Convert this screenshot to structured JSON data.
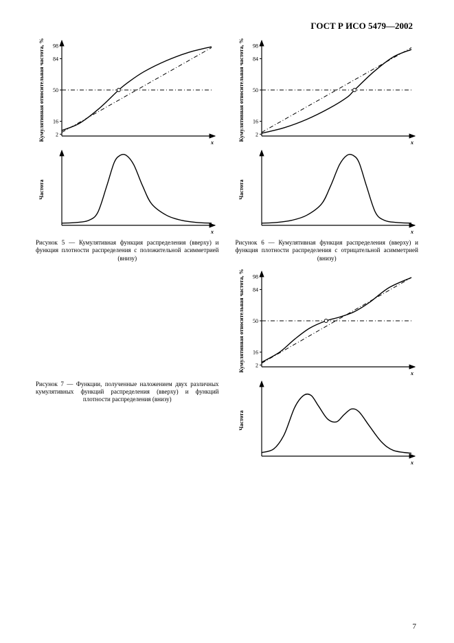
{
  "header": {
    "title": "ГОСТ Р ИСО 5479—2002"
  },
  "page_number": "7",
  "cdf_axis": {
    "ylabel": "Кумулятивная относительная частота, %",
    "xlabel": "x",
    "ticks": [
      "2",
      "16",
      "50",
      "84",
      "98"
    ],
    "tick_values": [
      2,
      16,
      50,
      84,
      98
    ],
    "ylim": [
      0,
      100
    ],
    "font_size": 8
  },
  "pdf_axis": {
    "ylabel": "Частота",
    "xlabel": "x",
    "font_size": 8
  },
  "style": {
    "stroke": "#000000",
    "line_width": 1.4,
    "dash_width": 1.0,
    "arrow": [
      [
        0,
        0
      ],
      [
        -7,
        -3
      ],
      [
        -7,
        3
      ]
    ],
    "dash_pattern": "6 3 1 3"
  },
  "figure5": {
    "cdf_curve": [
      [
        0,
        6
      ],
      [
        12,
        14
      ],
      [
        25,
        30
      ],
      [
        38,
        50
      ],
      [
        44,
        58
      ],
      [
        55,
        70
      ],
      [
        70,
        82
      ],
      [
        85,
        91
      ],
      [
        100,
        97
      ]
    ],
    "cdf_line": [
      [
        0,
        4
      ],
      [
        100,
        96
      ]
    ],
    "pdf_curve": [
      [
        0,
        3
      ],
      [
        10,
        4
      ],
      [
        18,
        7
      ],
      [
        24,
        18
      ],
      [
        30,
        55
      ],
      [
        35,
        88
      ],
      [
        39,
        98
      ],
      [
        43,
        98
      ],
      [
        48,
        85
      ],
      [
        54,
        55
      ],
      [
        60,
        30
      ],
      [
        70,
        14
      ],
      [
        80,
        7
      ],
      [
        90,
        4
      ],
      [
        100,
        3
      ]
    ],
    "caption": "Рисунок 5 — Кумулятивная функция распределения (вверху) и функция плотности распределения с положительной асимметрией (внизу)"
  },
  "figure6": {
    "cdf_curve": [
      [
        0,
        3
      ],
      [
        15,
        9
      ],
      [
        30,
        18
      ],
      [
        45,
        30
      ],
      [
        57,
        42
      ],
      [
        62,
        50
      ],
      [
        75,
        70
      ],
      [
        88,
        86
      ],
      [
        100,
        94
      ]
    ],
    "cdf_line": [
      [
        0,
        4
      ],
      [
        100,
        96
      ]
    ],
    "pdf_curve": [
      [
        0,
        3
      ],
      [
        10,
        4
      ],
      [
        20,
        7
      ],
      [
        30,
        14
      ],
      [
        40,
        30
      ],
      [
        46,
        55
      ],
      [
        52,
        85
      ],
      [
        57,
        98
      ],
      [
        61,
        98
      ],
      [
        65,
        88
      ],
      [
        70,
        55
      ],
      [
        76,
        18
      ],
      [
        82,
        7
      ],
      [
        90,
        4
      ],
      [
        100,
        3
      ]
    ],
    "caption": "Рисунок 6 — Кумулятивная функция распределения (вверху) и функция плотности распределения с отрицательной асимметрией (внизу)"
  },
  "figure7": {
    "cdf_curve": [
      [
        0,
        5
      ],
      [
        12,
        16
      ],
      [
        22,
        30
      ],
      [
        32,
        42
      ],
      [
        43,
        50
      ],
      [
        52,
        54
      ],
      [
        62,
        60
      ],
      [
        72,
        70
      ],
      [
        85,
        86
      ],
      [
        100,
        97
      ]
    ],
    "cdf_line": [
      [
        0,
        4
      ],
      [
        100,
        97
      ]
    ],
    "pdf_curve": [
      [
        0,
        5
      ],
      [
        8,
        10
      ],
      [
        15,
        30
      ],
      [
        22,
        68
      ],
      [
        28,
        85
      ],
      [
        33,
        85
      ],
      [
        38,
        70
      ],
      [
        44,
        52
      ],
      [
        50,
        48
      ],
      [
        55,
        58
      ],
      [
        60,
        66
      ],
      [
        65,
        62
      ],
      [
        72,
        42
      ],
      [
        80,
        20
      ],
      [
        88,
        8
      ],
      [
        100,
        4
      ]
    ],
    "caption": "Рисунок 7 — Функции, полученные наложением двух различных кумулятивных функций распределения (вверху) и функций плотности распределения (внизу)"
  }
}
